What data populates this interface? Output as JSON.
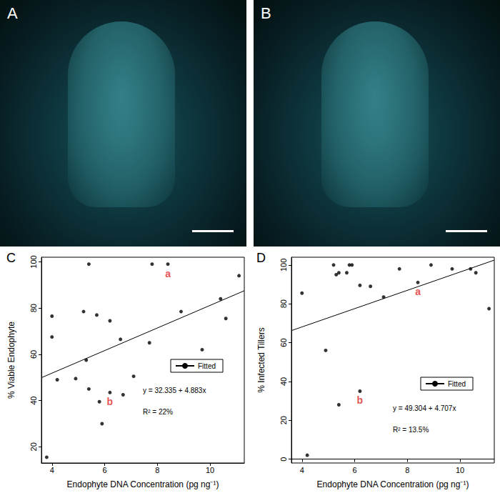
{
  "images": [
    {
      "label": "A"
    },
    {
      "label": "B"
    }
  ],
  "chart_data": [
    {
      "type": "scatter",
      "title": "C",
      "x_label": "Endophyte DNA Concentration (pg ng⁻¹)",
      "y_label": "% Viable Endophyte",
      "xlim": [
        3.6,
        11.3
      ],
      "xticks": [
        4,
        6,
        8,
        10
      ],
      "ylim": [
        13,
        102
      ],
      "yticks": [
        20,
        40,
        60,
        80,
        100
      ],
      "grid": false,
      "legend": "lower right",
      "series": [
        {
          "type": "scatter",
          "color": "#000000",
          "marker": "circle",
          "x": [
            3.8,
            4.0,
            4.0,
            4.2,
            4.9,
            5.2,
            5.3,
            5.4,
            5.4,
            5.7,
            5.8,
            5.9,
            6.2,
            6.2,
            6.6,
            6.7,
            7.1,
            7.7,
            7.8,
            8.4,
            8.9,
            9.7,
            10.4,
            10.6,
            11.1
          ],
          "values": [
            15.5,
            76.5,
            67.5,
            49,
            49.5,
            78.5,
            57.5,
            99,
            45,
            77,
            39.5,
            30,
            74.5,
            43.5,
            66.5,
            42.5,
            50.5,
            65,
            99,
            99,
            78.5,
            62,
            84,
            75.5,
            94
          ]
        },
        {
          "name": "Fitted",
          "type": "line",
          "color": "#000000",
          "line_style": "solid",
          "x": [
            3.6,
            11.3
          ],
          "values": [
            49.9,
            87.5
          ]
        }
      ],
      "annotations": [
        {
          "text": "a",
          "x": 8.4,
          "y": 99,
          "color": "#e0261f"
        },
        {
          "text": "b",
          "x": 6.2,
          "y": 43.5,
          "color": "#e0261f"
        }
      ],
      "fit_equation": "y = 32.335 + 4.883x",
      "fit_r2": "R² = 22%"
    },
    {
      "type": "scatter",
      "title": "D",
      "x_label": "Endophyte DNA Concentration (pg ng⁻¹)",
      "y_label": "% Infected Tillers",
      "xlim": [
        3.6,
        11.3
      ],
      "xticks": [
        4,
        6,
        8,
        10
      ],
      "ylim": [
        -2,
        104
      ],
      "yticks": [
        0,
        20,
        40,
        60,
        80,
        100
      ],
      "grid": false,
      "legend": "lower right",
      "series": [
        {
          "type": "scatter",
          "color": "#000000",
          "marker": "circle",
          "x": [
            4.0,
            4.2,
            4.9,
            5.2,
            5.3,
            5.4,
            5.4,
            5.7,
            5.8,
            5.9,
            6.2,
            6.2,
            6.6,
            7.1,
            7.7,
            8.4,
            8.9,
            9.7,
            10.4,
            10.6,
            11.1
          ],
          "values": [
            85.5,
            2,
            56,
            100,
            95,
            96,
            28,
            96,
            100,
            100,
            89.5,
            35,
            89,
            83.5,
            98,
            91,
            100,
            98,
            98,
            96,
            77.5
          ]
        },
        {
          "name": "Fitted",
          "type": "line",
          "color": "#000000",
          "line_style": "solid",
          "x": [
            3.6,
            11.3
          ],
          "values": [
            66.2,
            102.5
          ]
        }
      ],
      "annotations": [
        {
          "text": "a",
          "x": 8.4,
          "y": 91,
          "color": "#e0261f"
        },
        {
          "text": "b",
          "x": 6.2,
          "y": 35,
          "color": "#e0261f"
        }
      ],
      "fit_equation": "y = 49.304 + 4.707x",
      "fit_r2": "R² = 13.5%"
    }
  ]
}
